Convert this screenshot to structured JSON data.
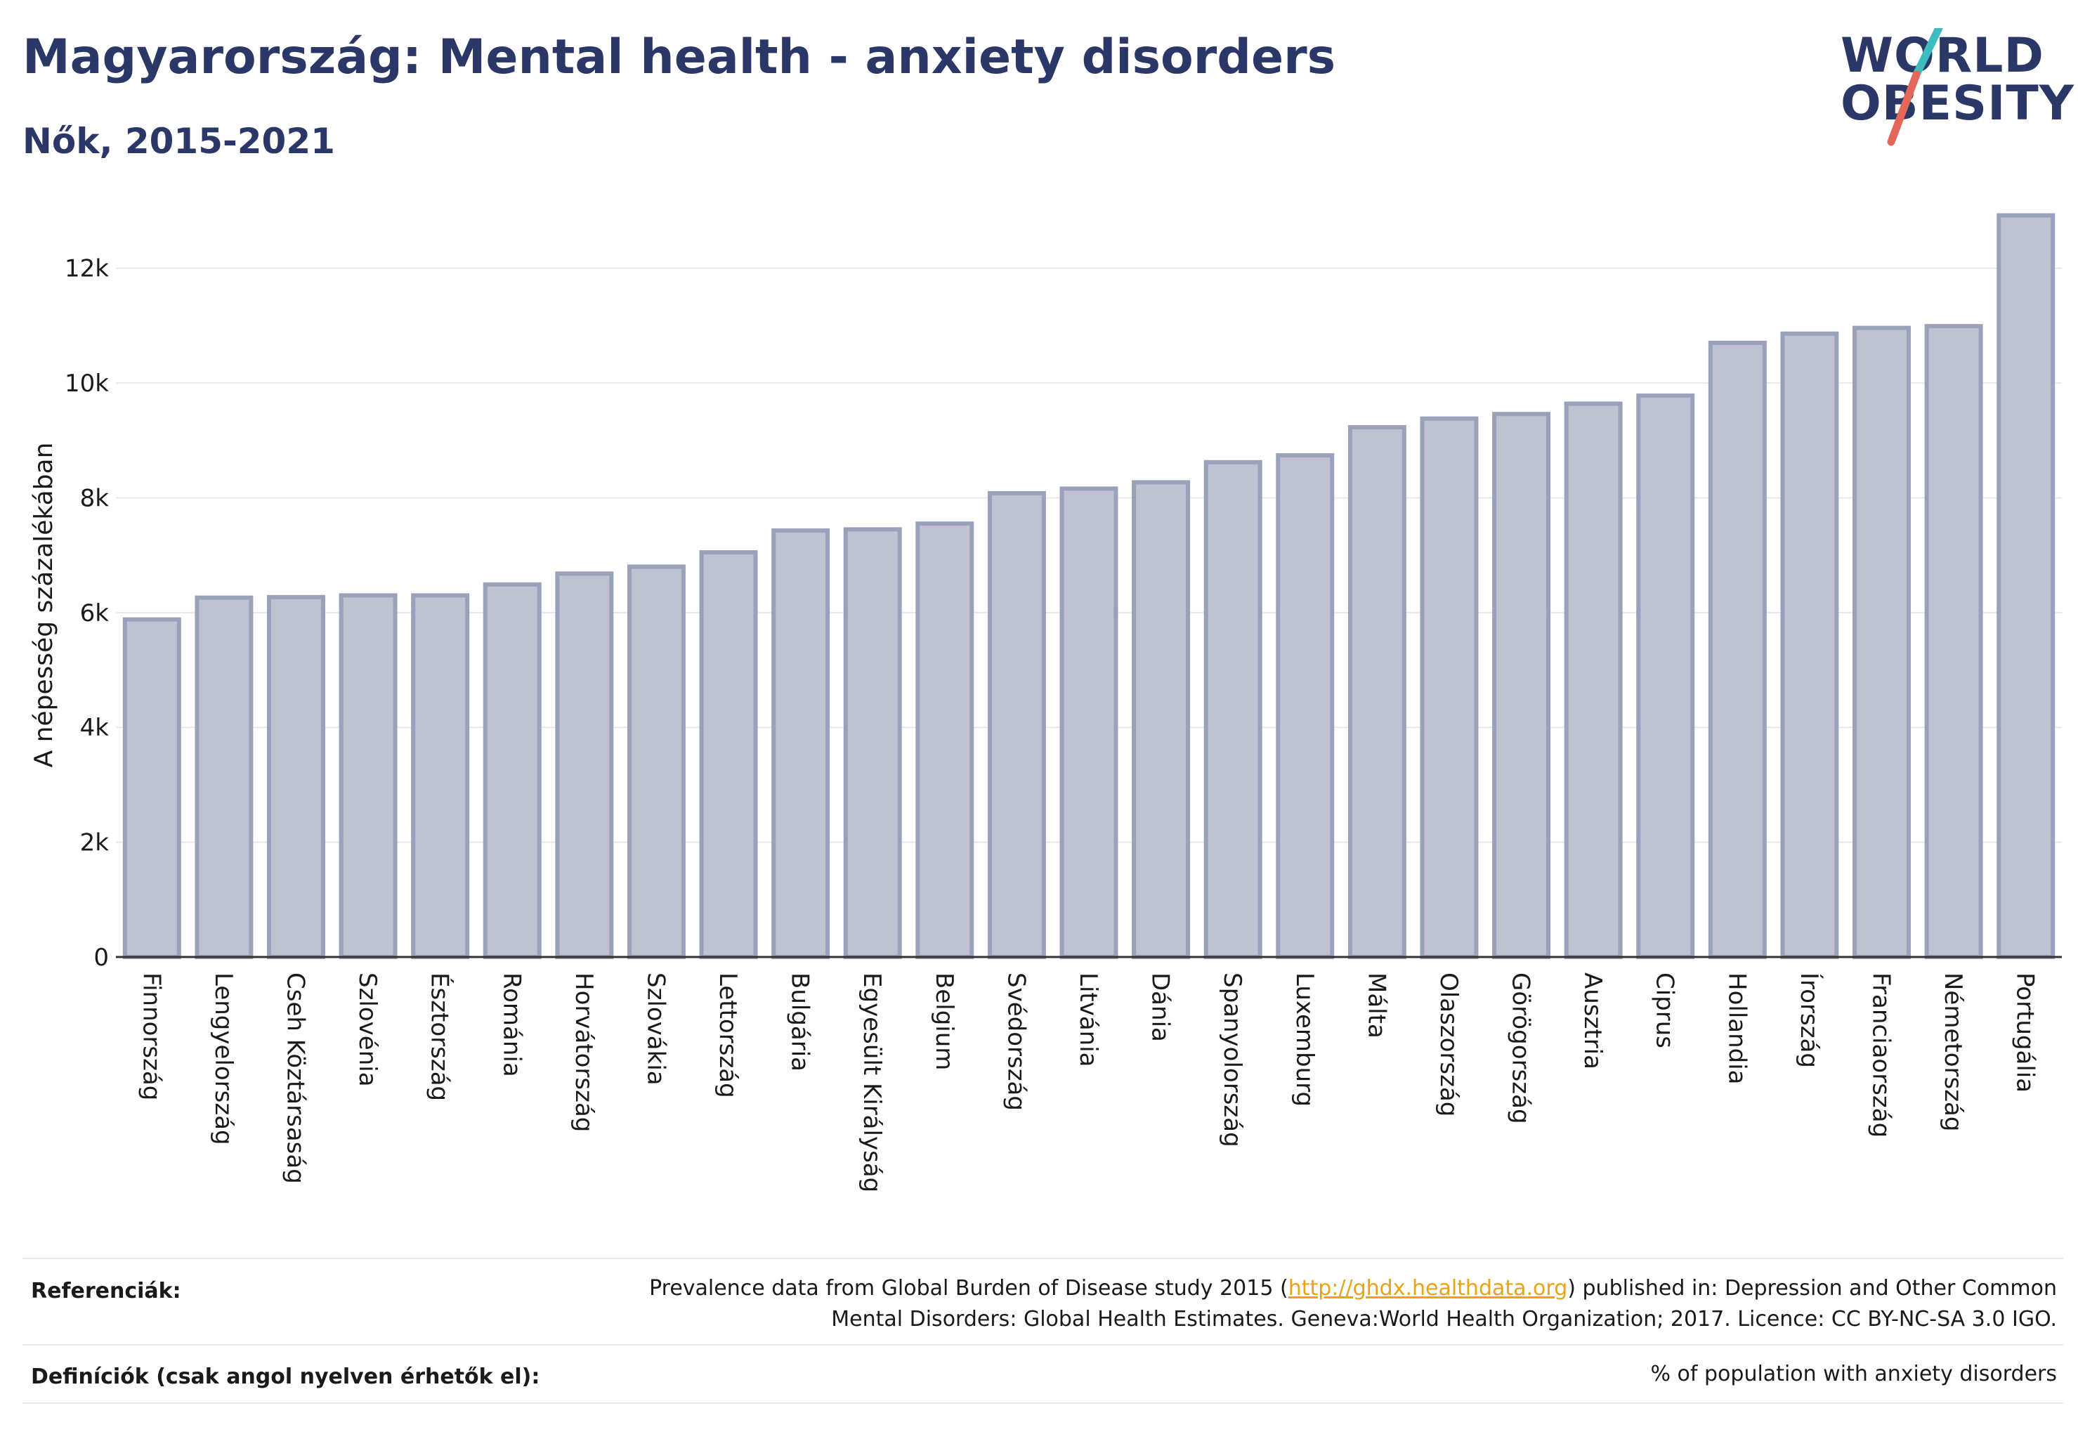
{
  "header": {
    "title": "Magyarország: Mental health - anxiety disorders",
    "subtitle": "Nők, 2015-2021"
  },
  "logo": {
    "line1": "WORLD",
    "line2": "OBESITY"
  },
  "colors": {
    "title": "#2b3766",
    "bar_fill": "#bfc2d0",
    "bar_stroke": "#9aa1ba",
    "accent_teal": "#3dbdbf",
    "accent_coral": "#e5675a",
    "link": "#e8a317"
  },
  "chart_data": {
    "type": "bar",
    "ylabel": "A népesség százalékában",
    "ylim": [
      0,
      13000
    ],
    "yticks": [
      0,
      2000,
      4000,
      6000,
      8000,
      10000,
      12000
    ],
    "ytick_labels": [
      "0",
      "2k",
      "4k",
      "6k",
      "8k",
      "10k",
      "12k"
    ],
    "grid": true,
    "categories": [
      "Finnország",
      "Lengyelország",
      "Cseh Köztársaság",
      "Szlovénia",
      "Észtország",
      "Románia",
      "Horvátország",
      "Szlovákia",
      "Lettország",
      "Bulgária",
      "Egyesült Királyság",
      "Belgium",
      "Svédország",
      "Litvánia",
      "Dánia",
      "Spanyolország",
      "Luxemburg",
      "Málta",
      "Olaszország",
      "Görögország",
      "Ausztria",
      "Ciprus",
      "Hollandia",
      "Írország",
      "Franciaország",
      "Németország",
      "Portugália"
    ],
    "values": [
      5880,
      6260,
      6270,
      6300,
      6300,
      6490,
      6680,
      6800,
      7050,
      7430,
      7450,
      7550,
      8080,
      8160,
      8270,
      8620,
      8740,
      9230,
      9380,
      9460,
      9640,
      9780,
      10700,
      10860,
      10960,
      10990,
      12920
    ]
  },
  "footer": {
    "references_label": "Referenciák:",
    "references_text_pre": "Prevalence data from Global Burden of Disease study 2015 (",
    "references_link": "http://ghdx.healthdata.org",
    "references_text_post": ") published in: Depression and Other Common",
    "references_line2": "Mental Disorders: Global Health Estimates. Geneva:World Health Organization; 2017. Licence: CC BY-NC-SA 3.0 IGO.",
    "definitions_label": "Definíciók (csak angol nyelven érhetők el):",
    "definitions_text": "% of population with anxiety disorders"
  }
}
